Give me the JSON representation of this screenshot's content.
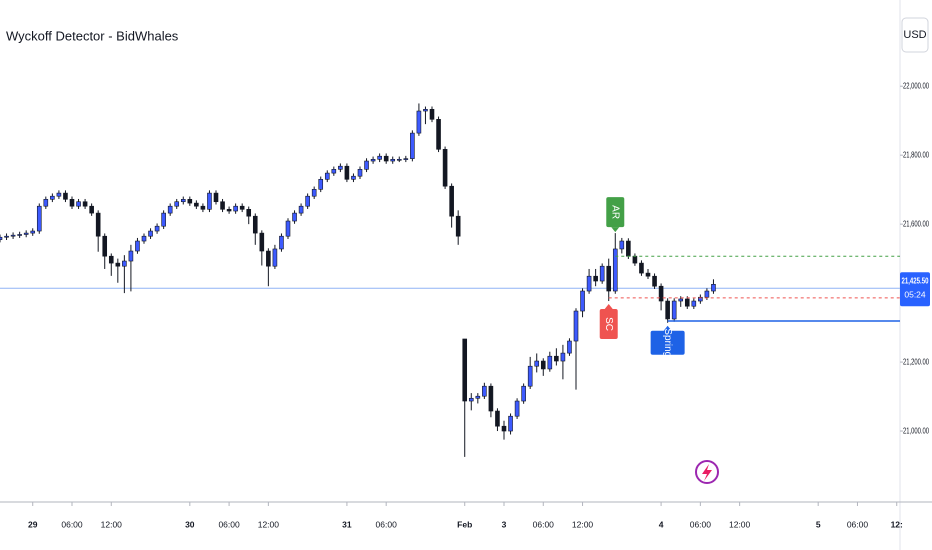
{
  "chart_data": {
    "type": "candlestick",
    "title": "Wyckoff Detector - BidWhales",
    "currency": "USD",
    "up_color": "#3d5afe",
    "down_color": "#131722",
    "xlim": [
      -5,
      132.5
    ],
    "xticks": [
      {
        "value": 0,
        "label": "29"
      },
      {
        "value": 6,
        "label": "06:00"
      },
      {
        "value": 12,
        "label": "12:00"
      },
      {
        "value": 24,
        "label": "30"
      },
      {
        "value": 30,
        "label": "06:00"
      },
      {
        "value": 36,
        "label": "12:00"
      },
      {
        "value": 48,
        "label": "31"
      },
      {
        "value": 54,
        "label": "06:00"
      },
      {
        "value": 66,
        "label": "Feb"
      },
      {
        "value": 72,
        "label": "3"
      },
      {
        "value": 78,
        "label": "06:00"
      },
      {
        "value": 84,
        "label": "12:00"
      },
      {
        "value": 96,
        "label": "4"
      },
      {
        "value": 102,
        "label": "06:00"
      },
      {
        "value": 108,
        "label": "12:00"
      },
      {
        "value": 120,
        "label": "5"
      },
      {
        "value": 126,
        "label": "06:00"
      },
      {
        "value": 132,
        "label": "12:"
      }
    ],
    "ylim": [
      20800,
      22250
    ],
    "yticks": [
      {
        "value": 21000,
        "label": "21,000.00"
      },
      {
        "value": 21200,
        "label": "21,200.00"
      },
      {
        "value": 21600,
        "label": "21,600.00"
      },
      {
        "value": 21800,
        "label": "21,800.00"
      },
      {
        "value": 22000,
        "label": "22,000.00"
      }
    ],
    "reference_line": 21414,
    "last_price": {
      "value": 21425.5,
      "label": "21,425.50"
    },
    "countdown": "05:24",
    "signals": [
      {
        "label": "AR",
        "x": 89,
        "level": 21507,
        "color": "#43a047",
        "position": "above"
      },
      {
        "label": "SC",
        "x": 88,
        "level": 21386,
        "color": "#ef5350",
        "position": "below"
      },
      {
        "label": "Spring",
        "x": 97,
        "level": 21319,
        "color": "#1e62e6",
        "position": "below"
      }
    ],
    "candles": [
      [
        -5,
        21555,
        21570,
        21547,
        21562
      ],
      [
        -4,
        21562,
        21573,
        21554,
        21565
      ],
      [
        -3,
        21565,
        21576,
        21557,
        21568
      ],
      [
        -2,
        21568,
        21578,
        21560,
        21570
      ],
      [
        -1,
        21570,
        21582,
        21562,
        21574
      ],
      [
        0,
        21574,
        21588,
        21566,
        21580
      ],
      [
        1,
        21580,
        21660,
        21572,
        21652
      ],
      [
        2,
        21652,
        21680,
        21644,
        21672
      ],
      [
        3,
        21672,
        21689,
        21664,
        21681
      ],
      [
        4,
        21681,
        21698,
        21673,
        21690
      ],
      [
        5,
        21690,
        21698,
        21664,
        21672
      ],
      [
        6,
        21672,
        21680,
        21644,
        21652
      ],
      [
        7,
        21652,
        21673,
        21644,
        21665
      ],
      [
        8,
        21665,
        21673,
        21644,
        21652
      ],
      [
        9,
        21652,
        21660,
        21624,
        21632
      ],
      [
        10,
        21632,
        21640,
        21520,
        21565
      ],
      [
        11,
        21565,
        21573,
        21470,
        21507
      ],
      [
        12,
        21507,
        21515,
        21450,
        21487
      ],
      [
        13,
        21487,
        21500,
        21430,
        21478
      ],
      [
        14,
        21478,
        21510,
        21400,
        21493
      ],
      [
        15,
        21493,
        21540,
        21405,
        21522
      ],
      [
        16,
        21522,
        21560,
        21514,
        21551
      ],
      [
        17,
        21551,
        21573,
        21543,
        21565
      ],
      [
        18,
        21565,
        21588,
        21557,
        21580
      ],
      [
        19,
        21580,
        21602,
        21572,
        21594
      ],
      [
        20,
        21594,
        21640,
        21586,
        21632
      ],
      [
        21,
        21632,
        21660,
        21624,
        21652
      ],
      [
        22,
        21652,
        21673,
        21644,
        21665
      ],
      [
        23,
        21665,
        21680,
        21657,
        21672
      ],
      [
        24,
        21672,
        21680,
        21653,
        21661
      ],
      [
        25,
        21661,
        21669,
        21644,
        21652
      ],
      [
        26,
        21652,
        21660,
        21635,
        21643
      ],
      [
        27,
        21643,
        21698,
        21635,
        21690
      ],
      [
        28,
        21690,
        21698,
        21657,
        21665
      ],
      [
        29,
        21665,
        21673,
        21635,
        21643
      ],
      [
        30,
        21643,
        21651,
        21630,
        21638
      ],
      [
        31,
        21638,
        21660,
        21630,
        21652
      ],
      [
        32,
        21652,
        21660,
        21635,
        21643
      ],
      [
        33,
        21643,
        21651,
        21600,
        21623
      ],
      [
        34,
        21623,
        21631,
        21540,
        21574
      ],
      [
        35,
        21574,
        21582,
        21480,
        21522
      ],
      [
        36,
        21522,
        21530,
        21420,
        21478
      ],
      [
        37,
        21478,
        21540,
        21470,
        21528
      ],
      [
        38,
        21528,
        21573,
        21520,
        21565
      ],
      [
        39,
        21565,
        21617,
        21557,
        21609
      ],
      [
        40,
        21609,
        21640,
        21601,
        21632
      ],
      [
        41,
        21632,
        21660,
        21624,
        21652
      ],
      [
        42,
        21652,
        21689,
        21644,
        21681
      ],
      [
        43,
        21681,
        21709,
        21673,
        21701
      ],
      [
        44,
        21701,
        21738,
        21693,
        21730
      ],
      [
        45,
        21730,
        21756,
        21722,
        21748
      ],
      [
        46,
        21748,
        21767,
        21740,
        21759
      ],
      [
        47,
        21759,
        21776,
        21751,
        21768
      ],
      [
        48,
        21768,
        21776,
        21722,
        21730
      ],
      [
        49,
        21730,
        21747,
        21722,
        21739
      ],
      [
        50,
        21739,
        21767,
        21731,
        21759
      ],
      [
        51,
        21759,
        21791,
        21751,
        21783
      ],
      [
        52,
        21783,
        21796,
        21775,
        21788
      ],
      [
        53,
        21788,
        21805,
        21780,
        21797
      ],
      [
        54,
        21797,
        21805,
        21775,
        21783
      ],
      [
        55,
        21783,
        21796,
        21775,
        21788
      ],
      [
        56,
        21788,
        21796,
        21780,
        21788
      ],
      [
        57,
        21788,
        21798,
        21780,
        21790
      ],
      [
        58,
        21790,
        21872,
        21782,
        21864
      ],
      [
        59,
        21864,
        21950,
        21856,
        21928
      ],
      [
        60,
        21928,
        21941,
        21890,
        21933
      ],
      [
        61,
        21933,
        21941,
        21896,
        21904
      ],
      [
        62,
        21904,
        21912,
        21809,
        21817
      ],
      [
        63,
        21817,
        21825,
        21702,
        21710
      ],
      [
        64,
        21710,
        21718,
        21590,
        21623
      ],
      [
        65,
        21623,
        21640,
        21540,
        21565
      ],
      [
        66,
        21267,
        21267,
        20925,
        21087
      ],
      [
        67,
        21087,
        21110,
        21060,
        21095
      ],
      [
        68,
        21095,
        21110,
        21080,
        21101
      ],
      [
        69,
        21101,
        21140,
        21093,
        21130
      ],
      [
        70,
        21130,
        21138,
        21040,
        21058
      ],
      [
        71,
        21058,
        21066,
        21000,
        21014
      ],
      [
        72,
        21014,
        21030,
        20975,
        21000
      ],
      [
        73,
        21000,
        21051,
        20990,
        21043
      ],
      [
        74,
        21043,
        21095,
        21035,
        21087
      ],
      [
        75,
        21087,
        21138,
        21079,
        21130
      ],
      [
        76,
        21130,
        21215,
        21122,
        21188
      ],
      [
        77,
        21188,
        21225,
        21170,
        21203
      ],
      [
        78,
        21203,
        21211,
        21160,
        21180
      ],
      [
        79,
        21180,
        21230,
        21172,
        21217
      ],
      [
        80,
        21217,
        21240,
        21190,
        21203
      ],
      [
        81,
        21203,
        21250,
        21150,
        21226
      ],
      [
        82,
        21226,
        21269,
        21218,
        21261
      ],
      [
        83,
        21261,
        21356,
        21120,
        21348
      ],
      [
        84,
        21348,
        21414,
        21330,
        21406
      ],
      [
        85,
        21406,
        21470,
        21398,
        21449
      ],
      [
        86,
        21449,
        21470,
        21420,
        21435
      ],
      [
        87,
        21435,
        21486,
        21427,
        21478
      ],
      [
        88,
        21478,
        21500,
        21377,
        21406
      ],
      [
        89,
        21406,
        21574,
        21398,
        21528
      ],
      [
        90,
        21528,
        21560,
        21515,
        21551
      ],
      [
        91,
        21551,
        21559,
        21499,
        21507
      ],
      [
        92,
        21507,
        21515,
        21479,
        21487
      ],
      [
        93,
        21487,
        21495,
        21450,
        21458
      ],
      [
        94,
        21458,
        21470,
        21441,
        21449
      ],
      [
        95,
        21449,
        21457,
        21412,
        21420
      ],
      [
        96,
        21420,
        21428,
        21350,
        21377
      ],
      [
        97,
        21377,
        21385,
        21314,
        21325
      ],
      [
        98,
        21325,
        21385,
        21317,
        21377
      ],
      [
        99,
        21377,
        21391,
        21360,
        21383
      ],
      [
        100,
        21383,
        21391,
        21354,
        21362
      ],
      [
        101,
        21362,
        21385,
        21354,
        21377
      ],
      [
        102,
        21377,
        21396,
        21369,
        21388
      ],
      [
        103,
        21388,
        21414,
        21380,
        21406
      ],
      [
        104,
        21406,
        21440,
        21398,
        21425.5
      ]
    ]
  }
}
